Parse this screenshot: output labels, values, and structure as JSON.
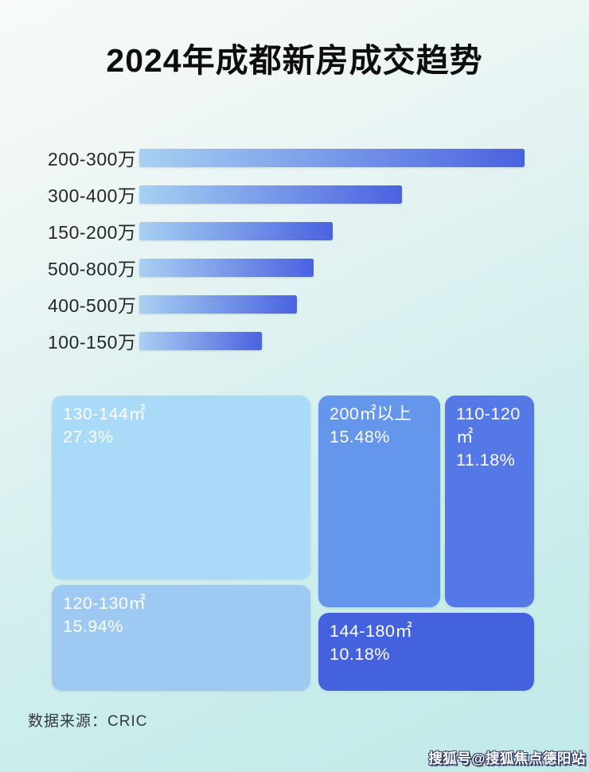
{
  "title": "2024年成都新房成交趋势",
  "source_label": "数据来源：CRIC",
  "watermark": "搜狐号@搜狐焦点德阳站",
  "colors": {
    "background_top": "#f8fafa",
    "background_bottom": "#c0e9e7",
    "title_text": "#0d0d0d",
    "bar_label_text": "#262626",
    "treemap_text": "#ffffff"
  },
  "chart_data": [
    {
      "type": "bar",
      "orientation": "horizontal",
      "title": "2024年成都新房成交趋势",
      "categories": [
        "200-300万",
        "300-400万",
        "150-200万",
        "500-800万",
        "400-500万",
        "100-150万"
      ],
      "values": [
        100,
        68.2,
        50.2,
        45.2,
        40.9,
        31.8
      ],
      "value_note": "no numeric labels shown; values are bar lengths as % of longest bar, estimated from pixels",
      "xlabel": "",
      "ylabel": "",
      "grid": false,
      "legend": false,
      "bar_color_gradient": [
        "#a8d0f2",
        "#4a62e0"
      ]
    },
    {
      "type": "treemap",
      "title": "",
      "legend": false,
      "items": [
        {
          "label": "130-144㎡",
          "value": 27.3,
          "pct_text": "27.3%",
          "color": "#a9daf8"
        },
        {
          "label": "200㎡以上",
          "value": 15.48,
          "pct_text": "15.48%",
          "color": "#6496ec"
        },
        {
          "label": "110-120㎡",
          "value": 11.18,
          "pct_text": "11.18%",
          "color": "#5478e6"
        },
        {
          "label": "120-130㎡",
          "value": 15.94,
          "pct_text": "15.94%",
          "color": "#9dc9f3"
        },
        {
          "label": "144-180㎡",
          "value": 10.18,
          "pct_text": "10.18%",
          "color": "#4562de"
        }
      ]
    }
  ]
}
